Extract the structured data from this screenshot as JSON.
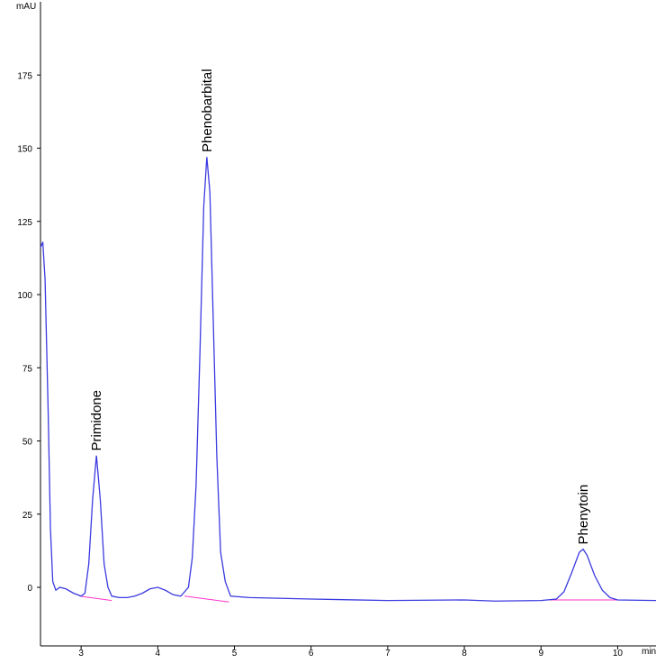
{
  "chart_data": {
    "type": "line",
    "y_label": "mAU",
    "x_label": "min",
    "xlim": [
      2.47,
      10.5
    ],
    "ylim": [
      -20,
      200
    ],
    "xticks": [
      3,
      4,
      5,
      6,
      7,
      8,
      9,
      10
    ],
    "yticks": [
      0,
      25,
      50,
      75,
      100,
      125,
      150,
      175
    ],
    "x": [
      2.47,
      2.5,
      2.53,
      2.57,
      2.6,
      2.63,
      2.67,
      2.72,
      2.8,
      2.9,
      3.0,
      3.05,
      3.1,
      3.15,
      3.2,
      3.25,
      3.3,
      3.35,
      3.4,
      3.5,
      3.6,
      3.7,
      3.8,
      3.9,
      4.0,
      4.1,
      4.2,
      4.3,
      4.4,
      4.45,
      4.5,
      4.55,
      4.6,
      4.64,
      4.68,
      4.72,
      4.77,
      4.82,
      4.88,
      4.95,
      5.2,
      6,
      7,
      8,
      8.4,
      9,
      9.2,
      9.3,
      9.4,
      9.5,
      9.55,
      9.6,
      9.7,
      9.8,
      9.9,
      10,
      10.5
    ],
    "series": [
      {
        "color": "#3a3ae0",
        "values": [
          116,
          118,
          105,
          60,
          20,
          2,
          -1,
          0,
          -0.5,
          -2,
          -3,
          -2,
          8,
          30,
          45,
          30,
          8,
          0,
          -3,
          -3.5,
          -3.5,
          -3,
          -2,
          -0.5,
          0,
          -1,
          -2.5,
          -3,
          0,
          10,
          35,
          80,
          130,
          147,
          135,
          95,
          45,
          12,
          2,
          -3,
          -3.5,
          -4,
          -4.5,
          -4.3,
          -4.7,
          -4.5,
          -4,
          -1.5,
          5,
          12,
          13,
          11,
          4,
          -1,
          -3.5,
          -4.3,
          -4.5
        ]
      }
    ],
    "baselines": {
      "color": "#ff33cc",
      "segments": [
        {
          "x": [
            2.98,
            3.4
          ],
          "y": [
            -3,
            -4.5
          ]
        },
        {
          "x": [
            4.35,
            4.93
          ],
          "y": [
            -3,
            -5
          ]
        },
        {
          "x": [
            9.1,
            10.0
          ],
          "y": [
            -4.3,
            -4.3
          ]
        }
      ]
    },
    "annotations": [
      {
        "text": "Primidone",
        "x": 3.2,
        "y": 46
      },
      {
        "text": "Phenobarbital",
        "x": 4.64,
        "y": 148
      },
      {
        "text": "Phenytoin",
        "x": 9.55,
        "y": 14
      }
    ]
  }
}
